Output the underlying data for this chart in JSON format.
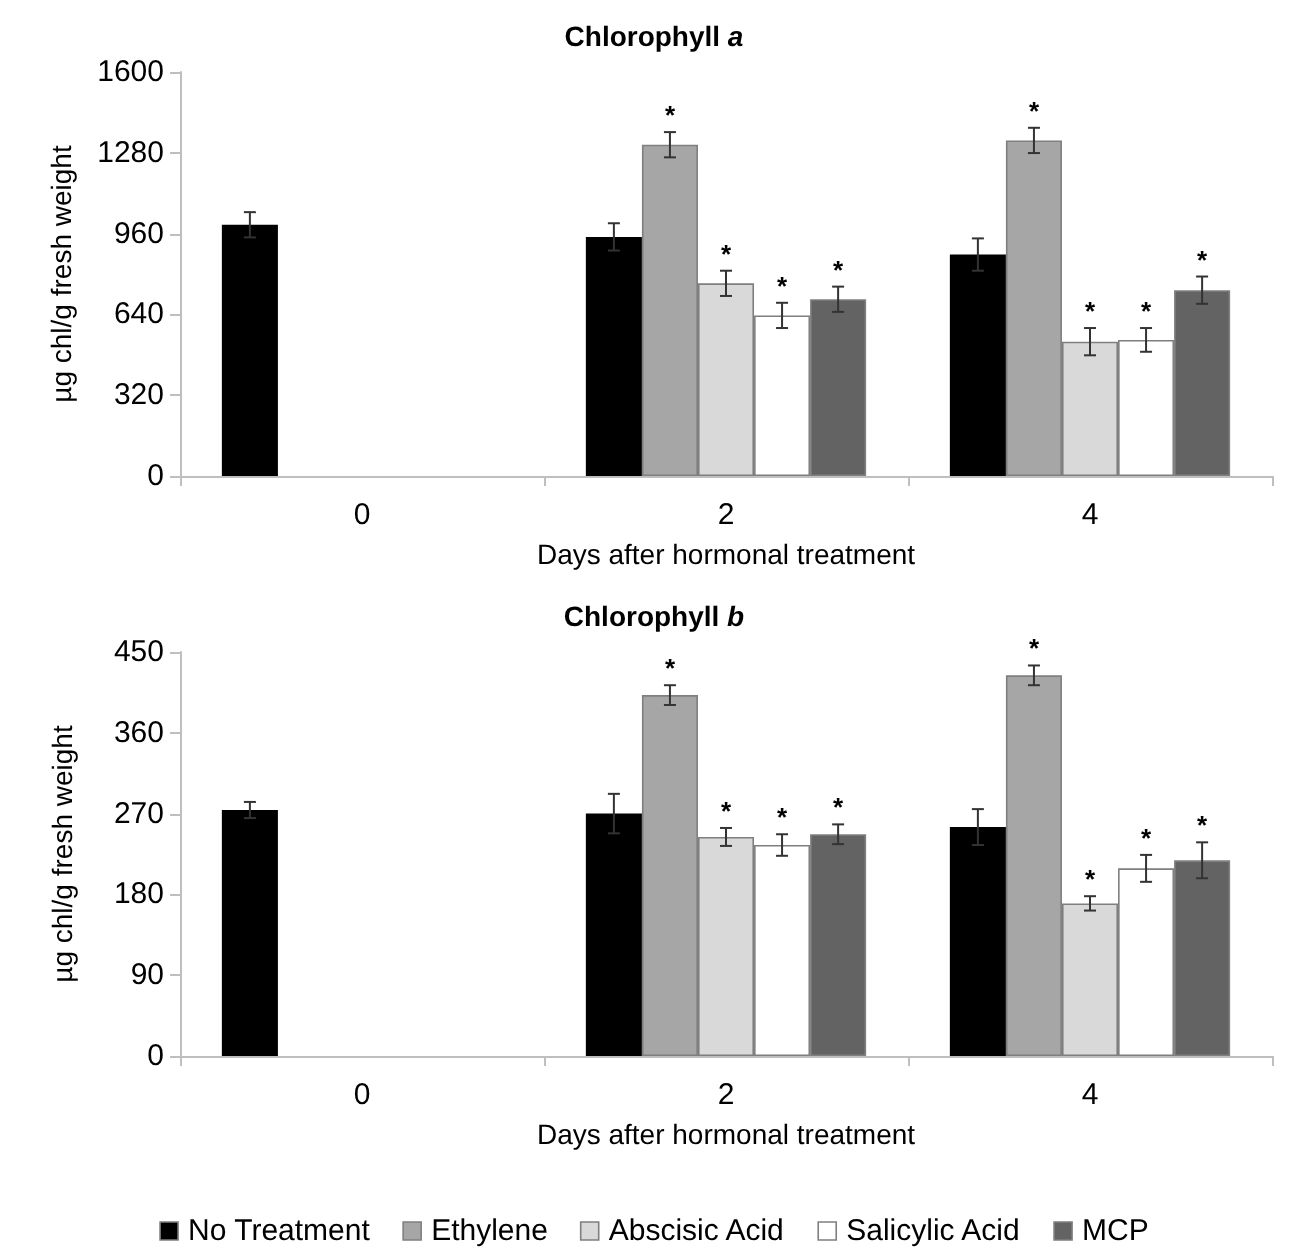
{
  "chart_data": [
    {
      "type": "bar",
      "title": "Chlorophyll a",
      "xlabel": "Days after hormonal treatment",
      "ylabel": "µg chl/g fresh weight",
      "categories": [
        "0",
        "2",
        "4"
      ],
      "ylim": [
        0,
        1600
      ],
      "yticks": [
        0,
        320,
        640,
        960,
        1280,
        1600
      ],
      "grid": false,
      "legend": false,
      "series": [
        {
          "color": "#000000",
          "values": [
            995,
            947,
            877
          ],
          "errors": [
            50,
            54,
            64
          ]
        },
        {
          "color": "#a6a6a6",
          "values": [
            null,
            1312,
            1329
          ],
          "errors": [
            null,
            50,
            50
          ],
          "value_labels": [
            null,
            "*",
            "*"
          ]
        },
        {
          "color": "#d9d9d9",
          "values": [
            null,
            763,
            532
          ],
          "errors": [
            null,
            50,
            54
          ],
          "value_labels": [
            null,
            "*",
            "*"
          ]
        },
        {
          "color": "#ffffff",
          "values": [
            null,
            636,
            539
          ],
          "errors": [
            null,
            50,
            47
          ],
          "value_labels": [
            null,
            "*",
            "*"
          ]
        },
        {
          "color": "#636363",
          "values": [
            null,
            700,
            736
          ],
          "errors": [
            null,
            50,
            54
          ],
          "value_labels": [
            null,
            "*",
            "*"
          ]
        }
      ]
    },
    {
      "type": "bar",
      "title": "Chlorophyll b",
      "xlabel": "Days after hormonal treatment",
      "ylabel": "µg chl/g fresh weight",
      "categories": [
        "0",
        "2",
        "4"
      ],
      "ylim": [
        0,
        450
      ],
      "yticks": [
        0,
        90,
        180,
        270,
        360,
        450
      ],
      "grid": false,
      "legend": "bottom",
      "series": [
        {
          "name": "No Treatment",
          "color": "#000000",
          "values": [
            274,
            270,
            255
          ],
          "errors": [
            9,
            22,
            20
          ]
        },
        {
          "name": "Ethylene",
          "color": "#a6a6a6",
          "values": [
            null,
            402,
            424
          ],
          "errors": [
            null,
            11,
            11
          ],
          "value_labels": [
            null,
            "*",
            "*"
          ]
        },
        {
          "name": "Abscisic Acid",
          "color": "#d9d9d9",
          "values": [
            null,
            244,
            170
          ],
          "errors": [
            null,
            10,
            8
          ],
          "value_labels": [
            null,
            "*",
            "*"
          ]
        },
        {
          "name": "Salicylic Acid",
          "color": "#ffffff",
          "values": [
            null,
            235,
            209
          ],
          "errors": [
            null,
            12,
            15
          ],
          "value_labels": [
            null,
            "*",
            "*"
          ]
        },
        {
          "name": "MCP",
          "color": "#636363",
          "values": [
            null,
            247,
            218
          ],
          "errors": [
            null,
            11,
            20
          ],
          "value_labels": [
            null,
            "*",
            "*"
          ]
        }
      ]
    }
  ]
}
